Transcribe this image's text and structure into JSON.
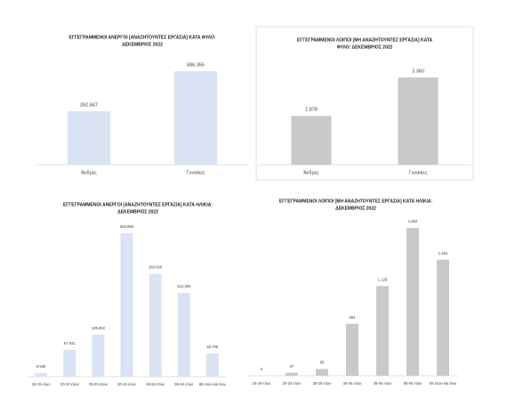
{
  "chart_data": [
    {
      "type": "bar",
      "title": "ΕΓΓΕΓΡΑΜΜΕΝΟΙ ΑΝΕΡΓΟΙ [ΑΝΑΖΗΤΟΥΝΤΕΣ ΕΡΓΑΣΙΑ]  ΚΑΤΑ ΦΥΛΟ:",
      "subtitle": "ΔΕΚΕΜΒΡΙΟΣ  2022",
      "categories": [
        "Άνδρες",
        "Γυναίκες"
      ],
      "values": [
        392847,
        686355
      ],
      "value_labels": [
        "392.847",
        "686.355"
      ],
      "color": "#dae3f3"
    },
    {
      "type": "bar",
      "title": "ΕΓΓΕΓΡΑΜΜΕΝΟΙ ΛΟΙΠΟΙ [ΜΗ ΑΝΑΖΗΤΟΥΝΤΕΣ ΕΡΓΑΣΙΑ] ΚΑΤΑ",
      "subtitle": "ΦΥΛΟ: ΔΕΚΕΜΒΡΙΟΣ  2022",
      "categories": [
        "Άνδρες",
        "Γυναίκες"
      ],
      "values": [
        1878,
        3360
      ],
      "value_labels": [
        "1.878",
        "3.360"
      ],
      "color": "#c9c9c9"
    },
    {
      "type": "bar",
      "title": "ΕΓΓΕΓΡΑΜΜΕΝΟΙ ΑΝΕΡΓΟΙ [ΑΝΑΖΗΤΟΥΝΤΕΣ ΕΡΓΑΣΙΑ] ΚΑΤΑ ΗΛΙΚΙΑ:",
      "subtitle": "ΔΕΚΕΜΒΡΙΟΣ 2022",
      "categories": [
        "15-19 ετών",
        "20-24 ετών",
        "25-29 ετών",
        "30-44 ετών",
        "45-54 ετών",
        "55-64 ετών",
        "65 ετών και άνω"
      ],
      "values": [
        9530,
        67941,
        106052,
        363860,
        260926,
        212363,
        58706
      ],
      "value_labels": [
        "9.530",
        "67.941",
        "106.052",
        "363.860",
        "260.926",
        "212.363",
        "58.706"
      ],
      "color": "#dae3f3"
    },
    {
      "type": "bar",
      "title": "ΕΓΓΕΓΡΑΜΜΕΝΟΙ ΛΟΙΠΟΙ [ΜΗ ΑΝΑΖΗΤΟΥΝΤΕΣ ΕΡΓΑΣΙΑ] ΚΑΤΑ ΗΛΙΚΙΑ:",
      "subtitle": "ΔΕΚΕΜΒΡΙΟΣ  2022",
      "categories": [
        "15-19 ετών",
        "20-24 ετών",
        "25-29 ετών",
        "30-44 ετών",
        "45-54 ετών",
        "55-64 ετών",
        "65 ετών και άνω"
      ],
      "values": [
        0,
        37,
        85,
        654,
        1129,
        1862,
        1461
      ],
      "value_labels": [
        "0",
        "37",
        "85",
        "654",
        "1.129",
        "1.862",
        "1.461"
      ],
      "color": "#c9c9c9"
    }
  ]
}
